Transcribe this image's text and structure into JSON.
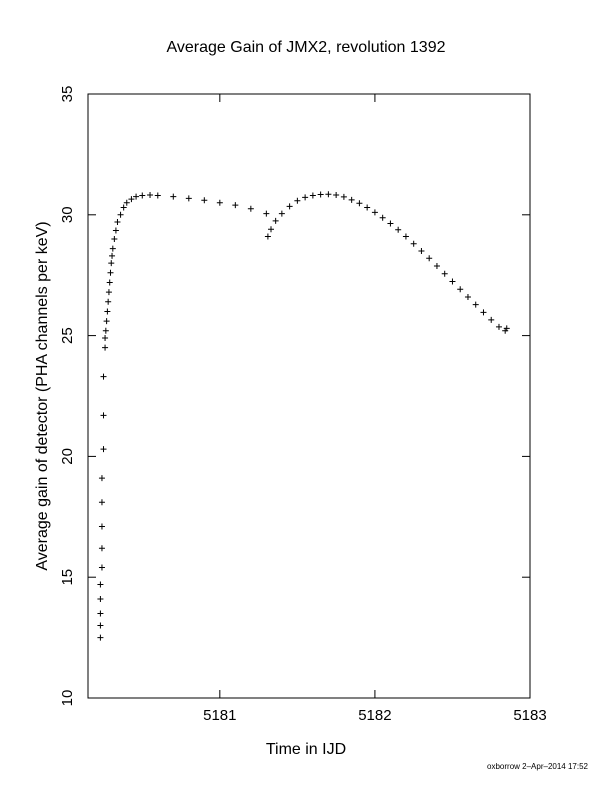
{
  "chart_data": {
    "type": "scatter",
    "title": "Average Gain of JMX2, revolution 1392",
    "xlabel": "Time in IJD",
    "ylabel": "Average gain of detector (PHA channels per keV)",
    "xlim": [
      5180.15,
      5183.0
    ],
    "ylim": [
      10,
      35
    ],
    "x_ticks": [
      5181,
      5182,
      5183
    ],
    "y_ticks": [
      10,
      15,
      20,
      25,
      30,
      35
    ],
    "x_tick_labels": [
      "5181",
      "5182",
      "5183"
    ],
    "y_tick_labels": [
      "10",
      "15",
      "20",
      "25",
      "30",
      "35"
    ],
    "grid": false,
    "marker": "+",
    "series": [
      {
        "values_note": "",
        "points": [
          [
            5180.23,
            12.5
          ],
          [
            5180.23,
            13.0
          ],
          [
            5180.23,
            13.5
          ],
          [
            5180.23,
            14.1
          ],
          [
            5180.23,
            14.7
          ],
          [
            5180.24,
            15.4
          ],
          [
            5180.24,
            16.2
          ],
          [
            5180.24,
            17.1
          ],
          [
            5180.24,
            18.1
          ],
          [
            5180.24,
            19.1
          ],
          [
            5180.25,
            20.3
          ],
          [
            5180.25,
            21.7
          ],
          [
            5180.25,
            23.3
          ],
          [
            5180.26,
            24.5
          ],
          [
            5180.26,
            24.9
          ],
          [
            5180.265,
            25.2
          ],
          [
            5180.27,
            25.6
          ],
          [
            5180.275,
            26.0
          ],
          [
            5180.28,
            26.4
          ],
          [
            5180.285,
            26.8
          ],
          [
            5180.29,
            27.2
          ],
          [
            5180.295,
            27.6
          ],
          [
            5180.3,
            28.0
          ],
          [
            5180.305,
            28.3
          ],
          [
            5180.31,
            28.6
          ],
          [
            5180.32,
            29.0
          ],
          [
            5180.33,
            29.35
          ],
          [
            5180.34,
            29.7
          ],
          [
            5180.36,
            30.0
          ],
          [
            5180.38,
            30.3
          ],
          [
            5180.4,
            30.5
          ],
          [
            5180.43,
            30.65
          ],
          [
            5180.46,
            30.75
          ],
          [
            5180.5,
            30.8
          ],
          [
            5180.55,
            30.82
          ],
          [
            5180.6,
            30.8
          ],
          [
            5180.7,
            30.75
          ],
          [
            5180.8,
            30.68
          ],
          [
            5180.9,
            30.6
          ],
          [
            5181.0,
            30.5
          ],
          [
            5181.1,
            30.4
          ],
          [
            5181.2,
            30.25
          ],
          [
            5181.3,
            30.05
          ],
          [
            5181.31,
            29.1
          ],
          [
            5181.33,
            29.4
          ],
          [
            5181.36,
            29.75
          ],
          [
            5181.4,
            30.05
          ],
          [
            5181.45,
            30.35
          ],
          [
            5181.5,
            30.58
          ],
          [
            5181.55,
            30.72
          ],
          [
            5181.6,
            30.8
          ],
          [
            5181.65,
            30.84
          ],
          [
            5181.7,
            30.85
          ],
          [
            5181.75,
            30.82
          ],
          [
            5181.8,
            30.74
          ],
          [
            5181.85,
            30.62
          ],
          [
            5181.9,
            30.48
          ],
          [
            5181.95,
            30.3
          ],
          [
            5182.0,
            30.1
          ],
          [
            5182.05,
            29.88
          ],
          [
            5182.1,
            29.64
          ],
          [
            5182.15,
            29.38
          ],
          [
            5182.2,
            29.1
          ],
          [
            5182.25,
            28.8
          ],
          [
            5182.3,
            28.5
          ],
          [
            5182.35,
            28.2
          ],
          [
            5182.4,
            27.88
          ],
          [
            5182.45,
            27.56
          ],
          [
            5182.5,
            27.24
          ],
          [
            5182.55,
            26.92
          ],
          [
            5182.6,
            26.6
          ],
          [
            5182.65,
            26.28
          ],
          [
            5182.7,
            25.96
          ],
          [
            5182.75,
            25.65
          ],
          [
            5182.8,
            25.36
          ],
          [
            5182.84,
            25.2
          ],
          [
            5182.85,
            25.3
          ]
        ]
      }
    ]
  },
  "footer": "oxborrow  2–Apr–2014 17:52"
}
